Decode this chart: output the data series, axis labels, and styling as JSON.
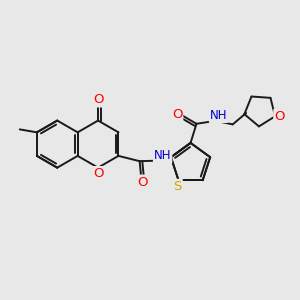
{
  "bg_color": "#e8e8e8",
  "bond_color": "#1a1a1a",
  "bond_width": 1.4,
  "atom_colors": {
    "O": "#ff0000",
    "N": "#0000cd",
    "S": "#ccaa00",
    "C": "#1a1a1a"
  },
  "font_size": 8.5,
  "figsize": [
    3.0,
    3.0
  ],
  "dpi": 100,
  "xlim": [
    0,
    10
  ],
  "ylim": [
    0,
    10
  ]
}
